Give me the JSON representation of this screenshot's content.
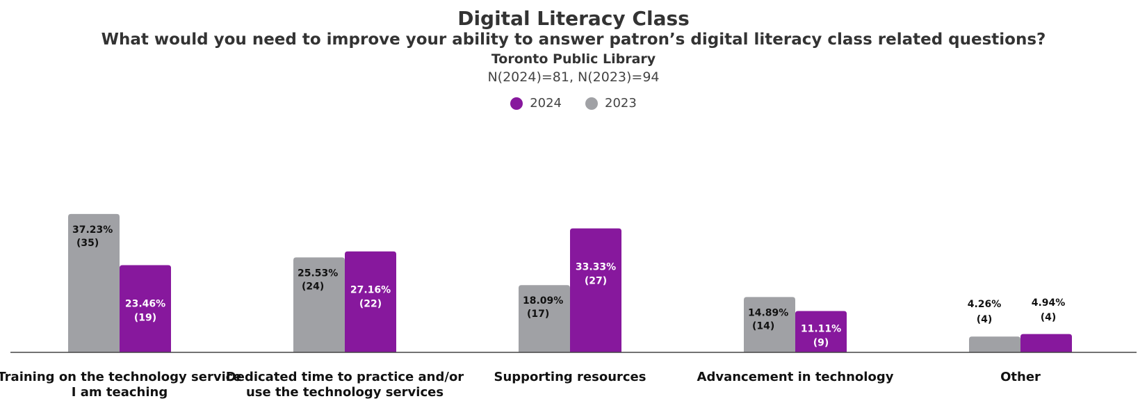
{
  "title": "Digital Literacy Class",
  "subtitle": "What would you need to improve your ability to answer patron’s digital literacy class related questions?",
  "organization": "Toronto Public Library",
  "sample_size": "N(2024)=81, N(2023)=94",
  "legend": [
    {
      "name": "2024",
      "color": "#87189D"
    },
    {
      "name": "2023",
      "color": "#A0A1A5"
    }
  ],
  "chart_data": {
    "type": "bar",
    "categories": [
      [
        "Training on the technology service",
        "I am teaching"
      ],
      [
        "Dedicated time to practice and/or",
        "use the technology services"
      ],
      [
        "Supporting resources"
      ],
      [
        "Advancement in technology"
      ],
      [
        "Other"
      ]
    ],
    "series": [
      {
        "name": "2023",
        "color": "#A0A1A5",
        "values": [
          37.23,
          25.53,
          18.09,
          14.89,
          4.26
        ],
        "counts": [
          35,
          24,
          17,
          14,
          4
        ],
        "labels": [
          "37.23%",
          "25.53%",
          "18.09%",
          "14.89%",
          "4.26%"
        ],
        "count_labels": [
          "(35)",
          "(24)",
          "(17)",
          "(14)",
          "(4)"
        ]
      },
      {
        "name": "2024",
        "color": "#87189D",
        "values": [
          23.46,
          27.16,
          33.33,
          11.11,
          4.94
        ],
        "counts": [
          19,
          22,
          27,
          9,
          4
        ],
        "labels": [
          "23.46%",
          "27.16%",
          "33.33%",
          "11.11%",
          "4.94%"
        ],
        "count_labels": [
          "(19)",
          "(22)",
          "(27)",
          "(9)",
          "(4)"
        ]
      }
    ],
    "ylim": [
      0,
      40
    ],
    "grid": false,
    "legend_position": "top-center"
  }
}
